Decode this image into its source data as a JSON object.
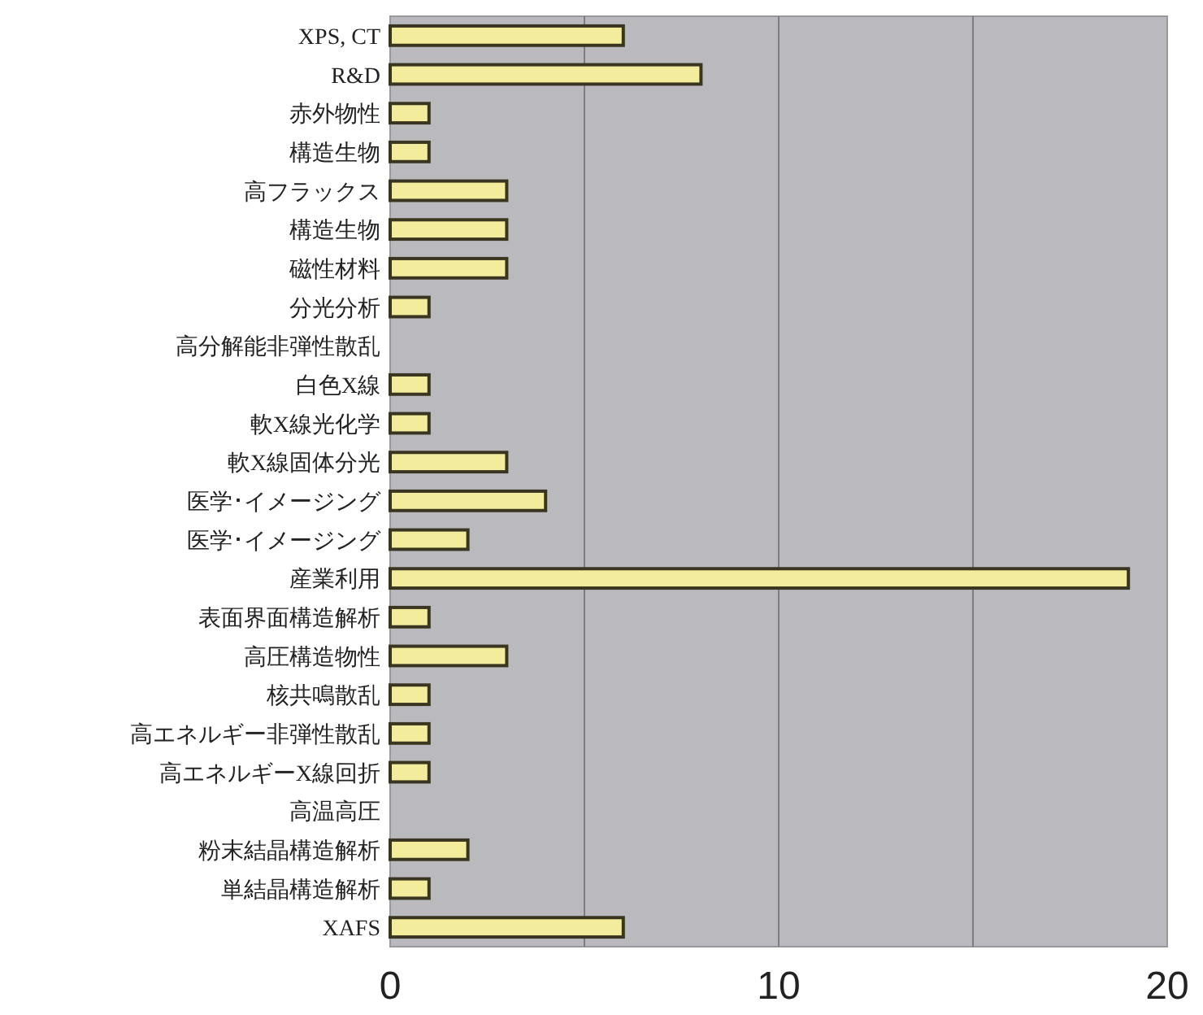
{
  "chart_data": {
    "type": "bar",
    "orientation": "horizontal",
    "categories": [
      "XPS, CT",
      "R&D",
      "赤外物性",
      "構造生物",
      "高フラックス",
      "構造生物",
      "磁性材料",
      "分光分析",
      "高分解能非弾性散乱",
      "白色X線",
      "軟X線光化学",
      "軟X線固体分光",
      "医学･イメージング",
      "医学･イメージング",
      "産業利用",
      "表面界面構造解析",
      "高圧構造物性",
      "核共鳴散乱",
      "高エネルギー非弾性散乱",
      "高エネルギーX線回折",
      "高温高圧",
      "粉末結晶構造解析",
      "単結晶構造解析",
      "XAFS"
    ],
    "values": [
      6,
      8,
      1,
      1,
      3,
      3,
      3,
      1,
      0,
      1,
      1,
      3,
      4,
      2,
      19,
      1,
      3,
      1,
      1,
      1,
      0,
      2,
      1,
      6
    ],
    "color": "#f2ec9c",
    "xlim": [
      0,
      20
    ],
    "xticks": [
      0,
      {
        "value": 5,
        "label": null
      },
      10,
      {
        "value": 15,
        "label": null
      },
      20
    ],
    "grid": "x"
  }
}
